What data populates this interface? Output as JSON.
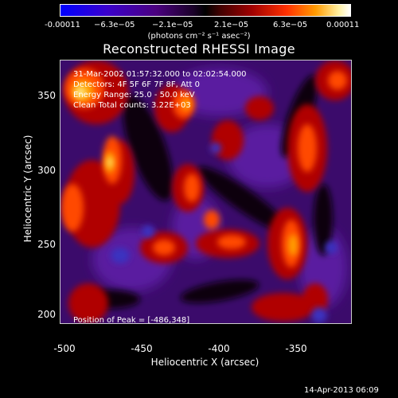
{
  "colorbar": {
    "ticks": [
      "-0.00011",
      "−6.3e−05",
      "−2.1e−05",
      "2.1e−05",
      "6.3e−05",
      "0.00011"
    ],
    "units": "(photons cm⁻² s⁻¹ asec⁻²)"
  },
  "title": "Reconstructed RHESSI Image",
  "annotations": {
    "time": "31-Mar-2002 01:57:32.000 to 02:02:54.000",
    "detectors": "Detectors: 4F 5F 6F 7F 8F, Att 0",
    "energy": "Energy Range: 25.0 - 50.0 keV",
    "counts": "Clean   Total counts: 3.22E+03",
    "peak": "Position of Peak = [-486,348]"
  },
  "axes": {
    "xlabel": "Heliocentric X (arcsec)",
    "ylabel": "Heliocentric Y (arcsec)",
    "xticks": [
      "-500",
      "-450",
      "-400",
      "-350"
    ],
    "yticks": [
      "350",
      "300",
      "250",
      "200"
    ]
  },
  "datestamp": "14-Apr-2013 06:09"
}
